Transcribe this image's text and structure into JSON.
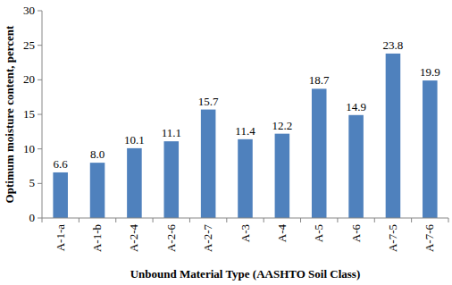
{
  "chart_data": {
    "type": "bar",
    "x_label": "Unbound Material Type (AASHTO Soil Class)",
    "y_label": "Optimum moisture content, percent",
    "categories": [
      "A-1-a",
      "A-1-b",
      "A-2-4",
      "A-2-6",
      "A-2-7",
      "A-3",
      "A-4",
      "A-5",
      "A-6",
      "A-7-5",
      "A-7-6"
    ],
    "values": [
      6.6,
      8.0,
      10.1,
      11.1,
      15.7,
      11.4,
      12.2,
      18.7,
      14.9,
      23.8,
      19.9
    ],
    "value_labels": [
      "6.6",
      "8.0",
      "10.1",
      "11.1",
      "15.7",
      "11.4",
      "12.2",
      "18.7",
      "14.9",
      "23.8",
      "19.9"
    ],
    "color": "#4f81bd",
    "ylim": [
      0,
      30
    ],
    "yticks": [
      0,
      5,
      10,
      15,
      20,
      25,
      30
    ],
    "grid": false,
    "data_labels": true
  }
}
